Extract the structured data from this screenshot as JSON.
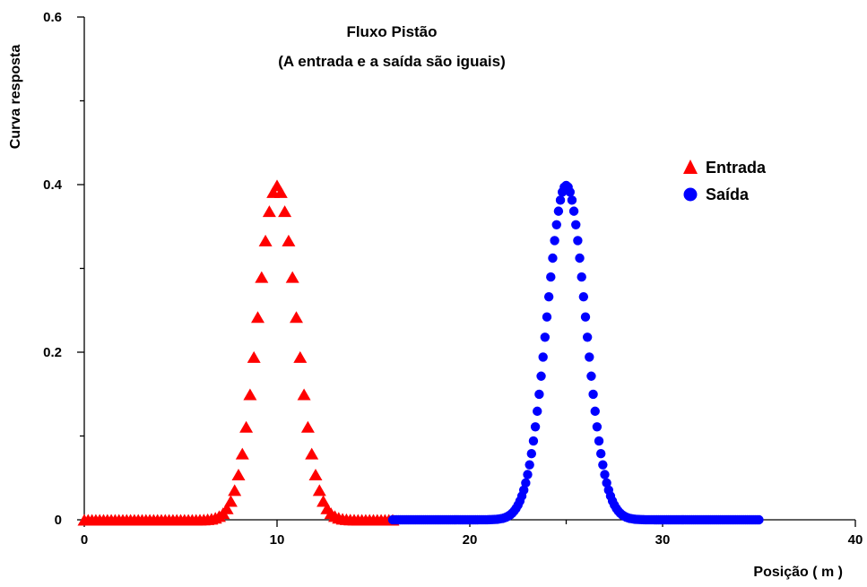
{
  "chart_data": {
    "type": "scatter",
    "title": "Fluxo Pistão",
    "subtitle": "(A entrada e a saída são iguais)",
    "xlabel": "Posição  ( m )",
    "ylabel": "Curva resposta",
    "xlim": [
      0,
      40
    ],
    "ylim": [
      0,
      0.6
    ],
    "x_ticks": [
      0,
      10,
      20,
      30,
      40
    ],
    "x_tick_labels": [
      "0",
      "10",
      "20",
      "30",
      "40"
    ],
    "y_ticks": [
      0,
      0.2,
      0.4,
      0.6
    ],
    "y_tick_labels": [
      "0",
      "0.2",
      "0.4",
      "0.6"
    ],
    "grid": false,
    "legend_position": "top-right",
    "series": [
      {
        "name": "Entrada",
        "marker": "triangle",
        "color": "#ff0000",
        "distribution": "gaussian",
        "peak_x": 10,
        "peak_y": 0.399,
        "std_dev": 1,
        "x_range": [
          0,
          16
        ],
        "x_step": 0.2
      },
      {
        "name": "Saída",
        "marker": "circle",
        "color": "#0000ff",
        "distribution": "gaussian",
        "peak_x": 25,
        "peak_y": 0.399,
        "std_dev": 1,
        "x_range": [
          16,
          35
        ],
        "x_step": 0.1
      }
    ]
  }
}
